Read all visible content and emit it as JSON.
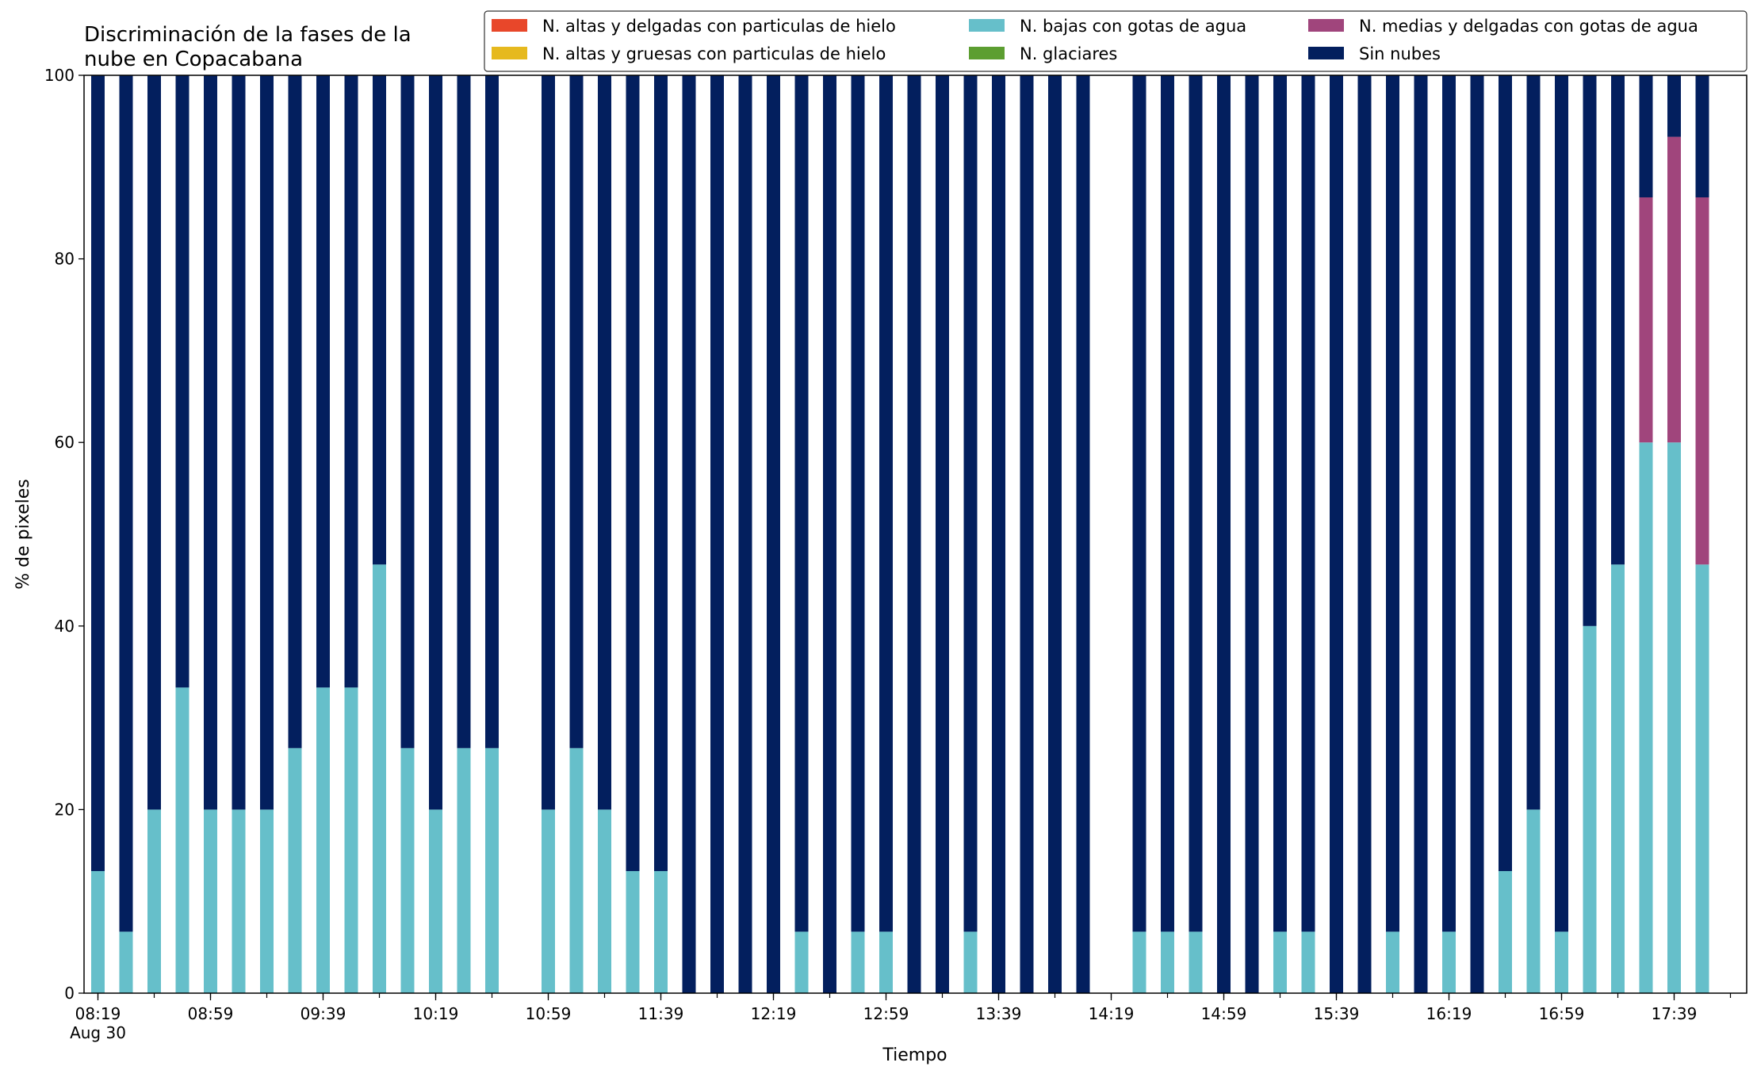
{
  "chart_data": {
    "type": "bar",
    "stacked": true,
    "title": "Discriminación de la fases de la\nnube en Copacabana",
    "xlabel": "Tiempo",
    "ylabel": "% de pixeles",
    "ylim": [
      0,
      100
    ],
    "yticks": [
      0,
      20,
      40,
      60,
      80,
      100
    ],
    "legend_position": "top-right",
    "legend": [
      {
        "name": "N. altas y delgadas con particulas de hielo",
        "color": "#e8472a"
      },
      {
        "name": "N. altas y gruesas con particulas de hielo",
        "color": "#e6b91e"
      },
      {
        "name": "N. bajas con gotas de agua",
        "color": "#66bfca"
      },
      {
        "name": "N. glaciares",
        "color": "#5c9e31"
      },
      {
        "name": "N. medias y delgadas con gotas de agua",
        "color": "#a0457c"
      },
      {
        "name": "Sin nubes",
        "color": "#031f5e"
      }
    ],
    "xtick_labels": [
      "08:19",
      "08:59",
      "09:39",
      "10:19",
      "10:59",
      "11:39",
      "12:19",
      "12:59",
      "13:39",
      "14:19",
      "14:59",
      "15:39",
      "16:19",
      "16:59",
      "17:39"
    ],
    "xtick_sublabel": "Aug 30",
    "bars": [
      {
        "time": "08:19",
        "bajas": 13.3,
        "medias": 0,
        "sin": 86.7
      },
      {
        "time": "08:29",
        "bajas": 6.7,
        "medias": 0,
        "sin": 93.3
      },
      {
        "time": "08:39",
        "bajas": 20,
        "medias": 0,
        "sin": 80
      },
      {
        "time": "08:49",
        "bajas": 33.3,
        "medias": 0,
        "sin": 66.7
      },
      {
        "time": "08:59",
        "bajas": 20,
        "medias": 0,
        "sin": 80
      },
      {
        "time": "09:09",
        "bajas": 20,
        "medias": 0,
        "sin": 80
      },
      {
        "time": "09:19",
        "bajas": 20,
        "medias": 0,
        "sin": 80
      },
      {
        "time": "09:29",
        "bajas": 26.7,
        "medias": 0,
        "sin": 73.3
      },
      {
        "time": "09:39",
        "bajas": 33.3,
        "medias": 0,
        "sin": 66.7
      },
      {
        "time": "09:49",
        "bajas": 33.3,
        "medias": 0,
        "sin": 66.7
      },
      {
        "time": "09:59",
        "bajas": 46.7,
        "medias": 0,
        "sin": 53.3
      },
      {
        "time": "10:09",
        "bajas": 26.7,
        "medias": 0,
        "sin": 73.3
      },
      {
        "time": "10:19",
        "bajas": 20,
        "medias": 0,
        "sin": 80
      },
      {
        "time": "10:29",
        "bajas": 26.7,
        "medias": 0,
        "sin": 73.3
      },
      {
        "time": "10:39",
        "bajas": 26.7,
        "medias": 0,
        "sin": 73.3
      },
      {
        "time": "10:59",
        "bajas": 20,
        "medias": 0,
        "sin": 80
      },
      {
        "time": "11:09",
        "bajas": 26.7,
        "medias": 0,
        "sin": 73.3
      },
      {
        "time": "11:19",
        "bajas": 20,
        "medias": 0,
        "sin": 80
      },
      {
        "time": "11:29",
        "bajas": 13.3,
        "medias": 0,
        "sin": 86.7
      },
      {
        "time": "11:39",
        "bajas": 13.3,
        "medias": 0,
        "sin": 86.7
      },
      {
        "time": "11:49",
        "bajas": 0,
        "medias": 0,
        "sin": 100
      },
      {
        "time": "11:59",
        "bajas": 0,
        "medias": 0,
        "sin": 100
      },
      {
        "time": "12:09",
        "bajas": 0,
        "medias": 0,
        "sin": 100
      },
      {
        "time": "12:19",
        "bajas": 0,
        "medias": 0,
        "sin": 100
      },
      {
        "time": "12:29",
        "bajas": 6.7,
        "medias": 0,
        "sin": 93.3
      },
      {
        "time": "12:39",
        "bajas": 0,
        "medias": 0,
        "sin": 100
      },
      {
        "time": "12:49",
        "bajas": 6.7,
        "medias": 0,
        "sin": 93.3
      },
      {
        "time": "12:59",
        "bajas": 6.7,
        "medias": 0,
        "sin": 93.3
      },
      {
        "time": "13:09",
        "bajas": 0,
        "medias": 0,
        "sin": 100
      },
      {
        "time": "13:19",
        "bajas": 0,
        "medias": 0,
        "sin": 100
      },
      {
        "time": "13:29",
        "bajas": 6.7,
        "medias": 0,
        "sin": 93.3
      },
      {
        "time": "13:39",
        "bajas": 0,
        "medias": 0,
        "sin": 100
      },
      {
        "time": "13:49",
        "bajas": 0,
        "medias": 0,
        "sin": 100
      },
      {
        "time": "13:59",
        "bajas": 0,
        "medias": 0,
        "sin": 100
      },
      {
        "time": "14:09",
        "bajas": 0,
        "medias": 0,
        "sin": 100
      },
      {
        "time": "14:29",
        "bajas": 6.7,
        "medias": 0,
        "sin": 93.3
      },
      {
        "time": "14:39",
        "bajas": 6.7,
        "medias": 0,
        "sin": 93.3
      },
      {
        "time": "14:49",
        "bajas": 6.7,
        "medias": 0,
        "sin": 93.3
      },
      {
        "time": "14:59",
        "bajas": 0,
        "medias": 0,
        "sin": 100
      },
      {
        "time": "15:09",
        "bajas": 0,
        "medias": 0,
        "sin": 100
      },
      {
        "time": "15:19",
        "bajas": 6.7,
        "medias": 0,
        "sin": 93.3
      },
      {
        "time": "15:29",
        "bajas": 6.7,
        "medias": 0,
        "sin": 93.3
      },
      {
        "time": "15:39",
        "bajas": 0,
        "medias": 0,
        "sin": 100
      },
      {
        "time": "15:49",
        "bajas": 0,
        "medias": 0,
        "sin": 100
      },
      {
        "time": "15:59",
        "bajas": 6.7,
        "medias": 0,
        "sin": 93.3
      },
      {
        "time": "16:09",
        "bajas": 0,
        "medias": 0,
        "sin": 100
      },
      {
        "time": "16:19",
        "bajas": 6.7,
        "medias": 0,
        "sin": 93.3
      },
      {
        "time": "16:29",
        "bajas": 0,
        "medias": 0,
        "sin": 100
      },
      {
        "time": "16:39",
        "bajas": 13.3,
        "medias": 0,
        "sin": 86.7
      },
      {
        "time": "16:49",
        "bajas": 20,
        "medias": 0,
        "sin": 80
      },
      {
        "time": "16:59",
        "bajas": 6.7,
        "medias": 0,
        "sin": 93.3
      },
      {
        "time": "17:09",
        "bajas": 40,
        "medias": 0,
        "sin": 60
      },
      {
        "time": "17:19",
        "bajas": 46.7,
        "medias": 0,
        "sin": 53.3
      },
      {
        "time": "17:29",
        "bajas": 60,
        "medias": 26.7,
        "sin": 13.3
      },
      {
        "time": "17:39",
        "bajas": 60,
        "medias": 33.3,
        "sin": 6.7
      },
      {
        "time": "17:49",
        "bajas": 46.7,
        "medias": 40,
        "sin": 13.3
      }
    ]
  }
}
